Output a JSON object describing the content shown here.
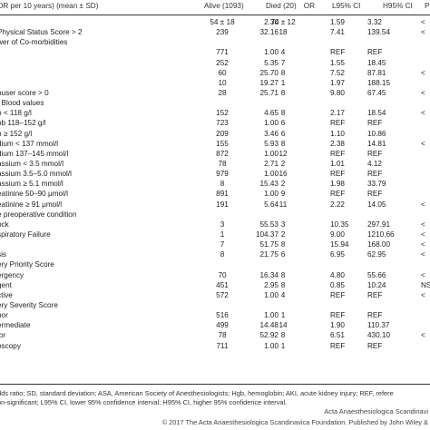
{
  "table": {
    "headers": [
      "OR per 10 years) (mean ± SD)",
      "Alive (1093)",
      "Died (20)",
      "OR",
      "L95% CI",
      "H95% CI",
      "P"
    ],
    "rows": [
      [
        "OR per 10 years) (mean ± SD)",
        "54 ± 18",
        "74 ± 12",
        "2.30",
        "1.59",
        "3.32",
        "<"
      ],
      [
        "Physical Status Score > 2",
        "239",
        "18",
        "32.16",
        "7.41",
        "139.54",
        "<"
      ],
      [
        "wer of Co-morbidities",
        "",
        "",
        "",
        "",
        "",
        ""
      ],
      [
        "",
        "771",
        "4",
        "1.00",
        "REF",
        "REF",
        ""
      ],
      [
        "",
        "252",
        "7",
        "5.35",
        "1.55",
        "18.45",
        ""
      ],
      [
        "",
        "60",
        "8",
        "25.70",
        "7.52",
        "87.81",
        "<"
      ],
      [
        "",
        "10",
        "1",
        "19.27",
        "1.97",
        "188.15",
        ""
      ],
      [
        "ouser score > 0",
        "28",
        "8",
        "25.71",
        "9.80",
        "67.45",
        "<"
      ],
      [
        ". Blood values",
        "",
        "",
        "",
        "",
        "",
        ""
      ],
      [
        "b < 118 g/l",
        "152",
        "8",
        "4.65",
        "2.17",
        "18.54",
        "<"
      ],
      [
        "ob 118–152 g/l",
        "723",
        "6",
        "1.00",
        "REF",
        "REF",
        ""
      ],
      [
        "b ≥ 152 g/l",
        "209",
        "6",
        "3.46",
        "1.10",
        "10.86",
        ""
      ],
      [
        "dium < 137 mmol/l",
        "155",
        "8",
        "5.93",
        "2.38",
        "14.81",
        "<"
      ],
      [
        "dium 137–145 mmol/l",
        "872",
        "12",
        "1.00",
        "REF",
        "REF",
        ""
      ],
      [
        "assium < 3.5 mmol/l",
        "78",
        "2",
        "2.71",
        "1.01",
        "4.12",
        ""
      ],
      [
        "assium 3.5–5.0 mmol/l",
        "979",
        "16",
        "1.00",
        "REF",
        "REF",
        ""
      ],
      [
        "assium ≥ 5.1 mmol/l",
        "8",
        "2",
        "15.43",
        "1.98",
        "33.79",
        ""
      ],
      [
        "eatinine 50–90 μmol/l",
        "891",
        "9",
        "1.00",
        "REF",
        "REF",
        ""
      ],
      [
        "eatinine ≥ 91 μmol/l",
        "191",
        "11",
        "5.64",
        "2.22",
        "14.05",
        "<"
      ],
      [
        "e preoperative condition",
        "",
        "",
        "",
        "",
        "",
        ""
      ],
      [
        "ock",
        "3",
        "3",
        "55.53",
        "10.35",
        "297.91",
        "<"
      ],
      [
        "spiratory Failure",
        "1",
        "2",
        "104.37",
        "9.00",
        "1210.66",
        "<"
      ],
      [
        "",
        "7",
        "8",
        "51.75",
        "15.94",
        "168.00",
        "<"
      ],
      [
        "sis",
        "8",
        "6",
        "21.75",
        "6.95",
        "62.95",
        "<"
      ],
      [
        "ery Priority Score",
        "",
        "",
        "",
        "",
        "",
        ""
      ],
      [
        "ergency",
        "70",
        "8",
        "16.34",
        "4.80",
        "55.66",
        "<"
      ],
      [
        "gent",
        "451",
        "8",
        "2.95",
        "0.85",
        "10.24",
        "NS"
      ],
      [
        "ctive",
        "572",
        "4",
        "1.00",
        "REF",
        "REF",
        "<"
      ],
      [
        "ery Severity Score",
        "",
        "",
        "",
        "",
        "",
        ""
      ],
      [
        "nor",
        "516",
        "1",
        "1.00",
        "REF",
        "REF",
        ""
      ],
      [
        "ermediate",
        "499",
        "14",
        "14.48",
        "1.90",
        "110.37",
        ""
      ],
      [
        "jor",
        "78",
        "8",
        "52.92",
        "6.51",
        "430.10",
        "<"
      ],
      [
        "oscopy",
        "711",
        "1",
        "1.00",
        "REF",
        "REF",
        ""
      ]
    ]
  },
  "footnote": [
    "dds ratio; SD, standard deviation; ASA, American Society of Anesthesiologists; Hgb, hemoglobin; AKI, acute kidney injury; REF, refere",
    "on-significant; L95% CI, lower 95% confidence interval; H95% CI, higher 95% confidence interval."
  ],
  "credits": {
    "journal": "Acta Anaesthesiologica Scandinavi",
    "copyright": "© 2017 The Acta Anaesthesiologica Scandinavica Foundation. Published by John Wiley &"
  }
}
